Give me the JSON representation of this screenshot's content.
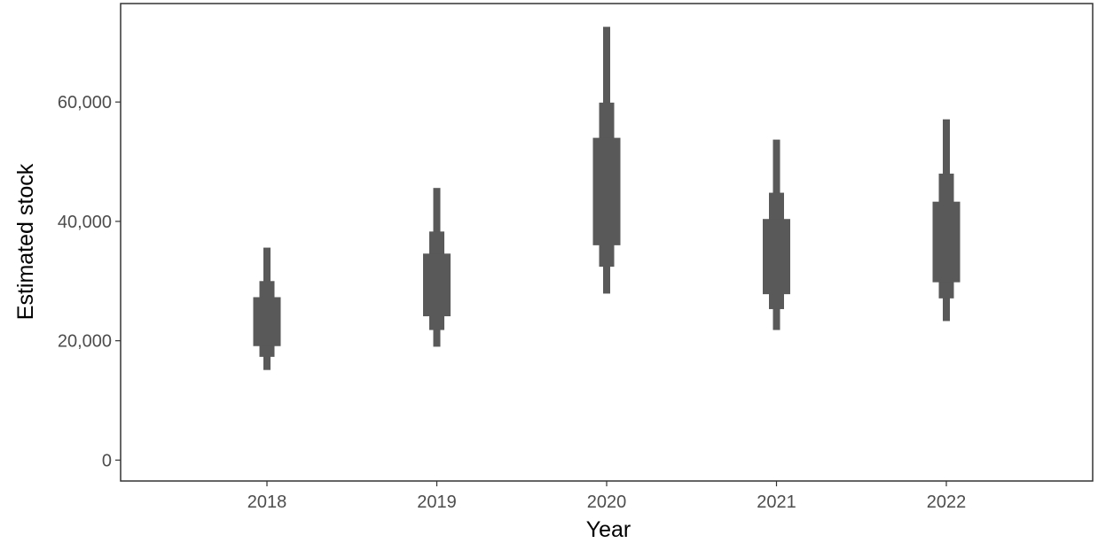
{
  "chart_data": {
    "type": "interval",
    "xlabel": "Year",
    "ylabel": "Estimated stock",
    "ylim": [
      -3500,
      76500
    ],
    "y_ticks": [
      0,
      20000,
      40000,
      60000
    ],
    "y_tick_labels": [
      "0",
      "20,000",
      "40,000",
      "60,000"
    ],
    "categories": [
      "2018",
      "2019",
      "2020",
      "2021",
      "2022"
    ],
    "grid": false,
    "bar_color": "#595959",
    "intervals": [
      {
        "year": "2018",
        "outer": [
          15100,
          35600
        ],
        "middle": [
          17300,
          30000
        ],
        "inner": [
          19100,
          27300
        ]
      },
      {
        "year": "2019",
        "outer": [
          19000,
          45600
        ],
        "middle": [
          21800,
          38300
        ],
        "inner": [
          24100,
          34600
        ]
      },
      {
        "year": "2020",
        "outer": [
          27900,
          72600
        ],
        "middle": [
          32400,
          59900
        ],
        "inner": [
          36000,
          54000
        ]
      },
      {
        "year": "2021",
        "outer": [
          21800,
          53700
        ],
        "middle": [
          25300,
          44800
        ],
        "inner": [
          27800,
          40400
        ]
      },
      {
        "year": "2022",
        "outer": [
          23300,
          57100
        ],
        "middle": [
          27100,
          48000
        ],
        "inner": [
          29800,
          43300
        ]
      }
    ]
  }
}
